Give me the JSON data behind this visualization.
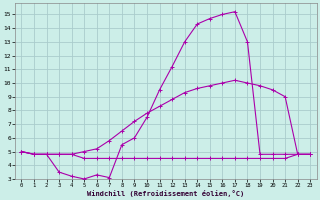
{
  "xlabel": "Windchill (Refroidissement éolien,°C)",
  "bg_color": "#cceee8",
  "grid_color": "#aacccc",
  "line_color": "#aa00aa",
  "xlim": [
    -0.5,
    23.5
  ],
  "ylim": [
    3,
    15.8
  ],
  "yticks": [
    3,
    4,
    5,
    6,
    7,
    8,
    9,
    10,
    11,
    12,
    13,
    14,
    15
  ],
  "xticks": [
    0,
    1,
    2,
    3,
    4,
    5,
    6,
    7,
    8,
    9,
    10,
    11,
    12,
    13,
    14,
    15,
    16,
    17,
    18,
    19,
    20,
    21,
    22,
    23
  ],
  "line1_x": [
    0,
    1,
    2,
    3,
    4,
    5,
    6,
    7,
    8,
    9,
    10,
    11,
    12,
    13,
    14,
    15,
    16,
    17,
    18,
    19,
    20,
    21,
    22,
    23
  ],
  "line1_y": [
    5.0,
    4.8,
    4.8,
    3.5,
    3.2,
    3.0,
    3.3,
    3.1,
    5.5,
    6.0,
    7.5,
    9.5,
    11.2,
    13.0,
    14.3,
    14.7,
    15.0,
    15.2,
    13.0,
    4.8,
    4.8,
    4.8,
    4.8,
    4.8
  ],
  "line2_x": [
    0,
    1,
    2,
    3,
    4,
    5,
    6,
    7,
    8,
    9,
    10,
    11,
    12,
    13,
    14,
    15,
    16,
    17,
    18,
    19,
    20,
    21,
    22,
    23
  ],
  "line2_y": [
    5.0,
    4.8,
    4.8,
    4.8,
    4.8,
    5.0,
    5.2,
    5.8,
    6.5,
    7.2,
    7.8,
    8.3,
    8.8,
    9.3,
    9.6,
    9.8,
    10.0,
    10.2,
    10.0,
    9.8,
    9.5,
    9.0,
    4.8,
    4.8
  ],
  "line3_x": [
    0,
    1,
    2,
    3,
    4,
    5,
    6,
    7,
    8,
    9,
    10,
    11,
    12,
    13,
    14,
    15,
    16,
    17,
    18,
    19,
    20,
    21,
    22,
    23
  ],
  "line3_y": [
    5.0,
    4.8,
    4.8,
    4.8,
    4.8,
    4.5,
    4.5,
    4.5,
    4.5,
    4.5,
    4.5,
    4.5,
    4.5,
    4.5,
    4.5,
    4.5,
    4.5,
    4.5,
    4.5,
    4.5,
    4.5,
    4.5,
    4.8,
    4.8
  ]
}
